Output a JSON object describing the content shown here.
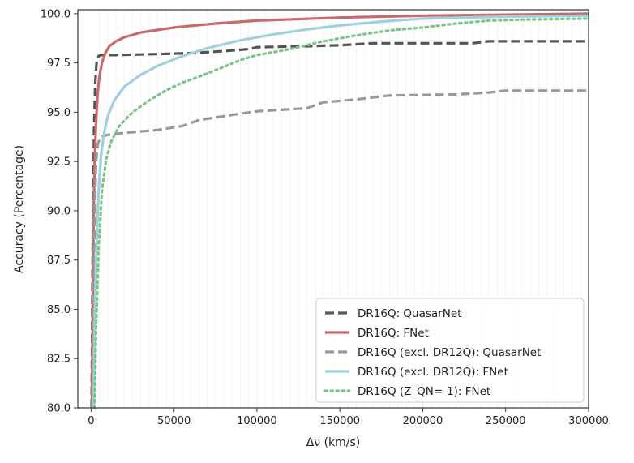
{
  "chart_data": {
    "type": "line",
    "xlabel": "Δν (km/s)",
    "ylabel": "Accuracy (Percentage)",
    "xlim": [
      -8000,
      300000
    ],
    "ylim": [
      80,
      100.2
    ],
    "xticks": [
      0,
      50000,
      100000,
      150000,
      200000,
      250000,
      300000
    ],
    "xtick_labels": [
      "0",
      "50000",
      "100000",
      "150000",
      "200000",
      "250000",
      "300000"
    ],
    "yticks": [
      80,
      82.5,
      85,
      87.5,
      90,
      92.5,
      95,
      97.5,
      100
    ],
    "ytick_labels": [
      "80.0",
      "82.5",
      "85.0",
      "87.5",
      "90.0",
      "92.5",
      "95.0",
      "97.5",
      "100.0"
    ],
    "grid": true,
    "legend_position": "bottom-right",
    "series": [
      {
        "name": "DR16Q: QuasarNet",
        "color": "#555555",
        "style": "dashed",
        "points": [
          [
            300,
            80
          ],
          [
            800,
            86
          ],
          [
            1200,
            90
          ],
          [
            1800,
            94
          ],
          [
            2500,
            96.5
          ],
          [
            3300,
            97.5
          ],
          [
            4500,
            97.85
          ],
          [
            6000,
            97.9
          ],
          [
            15000,
            97.9
          ],
          [
            40000,
            97.95
          ],
          [
            60000,
            98.0
          ],
          [
            80000,
            98.1
          ],
          [
            95000,
            98.2
          ],
          [
            100000,
            98.3
          ],
          [
            130000,
            98.35
          ],
          [
            150000,
            98.4
          ],
          [
            170000,
            98.5
          ],
          [
            200000,
            98.5
          ],
          [
            230000,
            98.5
          ],
          [
            240000,
            98.6
          ],
          [
            300000,
            98.6
          ]
        ]
      },
      {
        "name": "DR16Q: FNet",
        "color": "#c96a6a",
        "style": "solid",
        "points": [
          [
            500,
            80
          ],
          [
            1000,
            85
          ],
          [
            1600,
            90
          ],
          [
            2300,
            93
          ],
          [
            3000,
            94.5
          ],
          [
            4000,
            96
          ],
          [
            5000,
            96.8
          ],
          [
            6500,
            97.5
          ],
          [
            8500,
            98.0
          ],
          [
            11000,
            98.35
          ],
          [
            15000,
            98.6
          ],
          [
            20000,
            98.8
          ],
          [
            30000,
            99.05
          ],
          [
            50000,
            99.3
          ],
          [
            75000,
            99.5
          ],
          [
            100000,
            99.65
          ],
          [
            150000,
            99.8
          ],
          [
            200000,
            99.9
          ],
          [
            250000,
            99.95
          ],
          [
            300000,
            100.0
          ]
        ]
      },
      {
        "name": "DR16Q (excl. DR12Q): QuasarNet",
        "color": "#999999",
        "style": "dashed",
        "points": [
          [
            900,
            80
          ],
          [
            1500,
            85
          ],
          [
            2200,
            90
          ],
          [
            3000,
            92.5
          ],
          [
            4000,
            93.4
          ],
          [
            6000,
            93.75
          ],
          [
            10000,
            93.85
          ],
          [
            20000,
            93.95
          ],
          [
            40000,
            94.1
          ],
          [
            55000,
            94.3
          ],
          [
            65000,
            94.6
          ],
          [
            80000,
            94.8
          ],
          [
            100000,
            95.05
          ],
          [
            130000,
            95.2
          ],
          [
            140000,
            95.5
          ],
          [
            160000,
            95.65
          ],
          [
            180000,
            95.85
          ],
          [
            220000,
            95.9
          ],
          [
            240000,
            96.0
          ],
          [
            250000,
            96.1
          ],
          [
            300000,
            96.1
          ]
        ]
      },
      {
        "name": "DR16Q (excl. DR12Q): FNet",
        "color": "#9fd0de",
        "style": "solid",
        "points": [
          [
            1500,
            80
          ],
          [
            2300,
            85
          ],
          [
            3200,
            88
          ],
          [
            4500,
            91
          ],
          [
            6000,
            92.8
          ],
          [
            8000,
            94
          ],
          [
            10000,
            94.8
          ],
          [
            14000,
            95.6
          ],
          [
            20000,
            96.3
          ],
          [
            30000,
            96.9
          ],
          [
            40000,
            97.35
          ],
          [
            55000,
            97.85
          ],
          [
            70000,
            98.25
          ],
          [
            90000,
            98.65
          ],
          [
            110000,
            98.95
          ],
          [
            130000,
            99.2
          ],
          [
            150000,
            99.4
          ],
          [
            175000,
            99.6
          ],
          [
            200000,
            99.75
          ],
          [
            250000,
            99.85
          ],
          [
            300000,
            99.9
          ]
        ]
      },
      {
        "name": "DR16Q (Z_QN=-1): FNet",
        "color": "#7cc48a",
        "style": "dotted",
        "points": [
          [
            2000,
            80
          ],
          [
            3000,
            84
          ],
          [
            4500,
            88
          ],
          [
            6500,
            91
          ],
          [
            9000,
            92.6
          ],
          [
            12000,
            93.5
          ],
          [
            17000,
            94.3
          ],
          [
            25000,
            95
          ],
          [
            35000,
            95.6
          ],
          [
            45000,
            96.1
          ],
          [
            55000,
            96.5
          ],
          [
            65000,
            96.8
          ],
          [
            80000,
            97.3
          ],
          [
            90000,
            97.65
          ],
          [
            100000,
            97.9
          ],
          [
            120000,
            98.2
          ],
          [
            140000,
            98.6
          ],
          [
            160000,
            98.9
          ],
          [
            180000,
            99.15
          ],
          [
            200000,
            99.3
          ],
          [
            220000,
            99.5
          ],
          [
            240000,
            99.65
          ],
          [
            260000,
            99.7
          ],
          [
            300000,
            99.75
          ]
        ]
      }
    ]
  }
}
